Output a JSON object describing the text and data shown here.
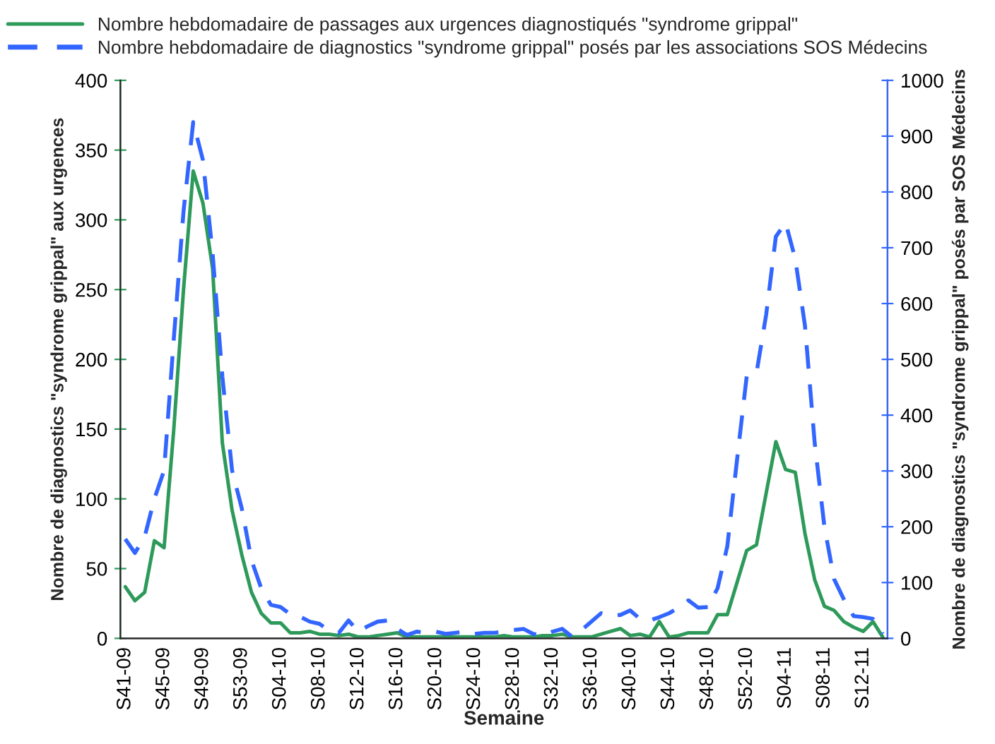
{
  "chart_data": {
    "type": "line",
    "xlabel": "Semaine",
    "ylabel": "Nombre de diagnostics \"syndrome grippal\" aux urgences",
    "y2label": "Nombre de diagnostics \"syndrome grippal\" posés par SOS Médecins",
    "categories": [
      "S41-09",
      null,
      null,
      null,
      "S45-09",
      null,
      null,
      null,
      "S49-09",
      null,
      null,
      null,
      "S53-09",
      null,
      null,
      null,
      "S04-10",
      null,
      null,
      null,
      "S08-10",
      null,
      null,
      null,
      "S12-10",
      null,
      null,
      null,
      "S16-10",
      null,
      null,
      null,
      "S20-10",
      null,
      null,
      null,
      "S24-10",
      null,
      null,
      null,
      "S28-10",
      null,
      null,
      null,
      "S32-10",
      null,
      null,
      null,
      "S36-10",
      null,
      null,
      null,
      "S40-10",
      null,
      null,
      null,
      "S44-10",
      null,
      null,
      null,
      "S48-10",
      null,
      null,
      null,
      "S52-10",
      null,
      null,
      null,
      "S04-11",
      null,
      null,
      null,
      "S08-11",
      null,
      null,
      null,
      "S12-11",
      null,
      null
    ],
    "series": [
      {
        "name": "Nombre hebdomadaire de passages aux urgences diagnostiqués \"syndrome grippal\"",
        "color": "#2e9a5a",
        "line_style": "solid",
        "values": [
          37,
          27,
          33,
          70,
          65,
          150,
          250,
          335,
          312,
          265,
          140,
          92,
          60,
          33,
          18,
          11,
          11,
          4,
          4,
          5,
          3,
          3,
          2,
          3,
          1,
          1,
          2,
          3,
          4,
          1,
          1,
          1,
          1,
          1,
          1,
          1,
          1,
          1,
          1,
          2,
          1,
          1,
          1,
          2,
          2,
          3,
          1,
          1,
          1,
          3,
          5,
          7,
          2,
          3,
          1,
          12,
          1,
          2,
          4,
          4,
          4,
          17,
          17,
          40,
          63,
          67,
          104,
          141,
          121,
          119,
          75,
          42,
          23,
          20,
          12,
          8,
          5,
          12,
          1
        ]
      },
      {
        "name": "Nombre hebdomadaire de diagnostics \"syndrome grippal\" posés par les associations SOS Médecins",
        "color": "#3366ff",
        "line_style": "dashed",
        "axis": "y2",
        "values": [
          178,
          153,
          182,
          250,
          301,
          537,
          765,
          925,
          857,
          689,
          469,
          301,
          233,
          140,
          90,
          60,
          56,
          43,
          39,
          30,
          26,
          14,
          10,
          32,
          12,
          22,
          30,
          32,
          17,
          6,
          12,
          10,
          12,
          8,
          10,
          12,
          8,
          10,
          10,
          12,
          15,
          17,
          8,
          5,
          12,
          17,
          3,
          15,
          30,
          45,
          40,
          42,
          50,
          35,
          32,
          38,
          45,
          55,
          68,
          55,
          56,
          90,
          165,
          320,
          470,
          475,
          580,
          720,
          745,
          680,
          560,
          350,
          200,
          106,
          70,
          40,
          38,
          35,
          8
        ]
      }
    ],
    "ylim": [
      0,
      400
    ],
    "yticks": [
      0,
      50,
      100,
      150,
      200,
      250,
      300,
      350,
      400
    ],
    "y2lim": [
      0,
      1000
    ],
    "y2ticks": [
      0,
      100,
      200,
      300,
      400,
      500,
      600,
      700,
      800,
      900,
      1000
    ],
    "grid": false,
    "legend": "top",
    "marker": "none"
  }
}
